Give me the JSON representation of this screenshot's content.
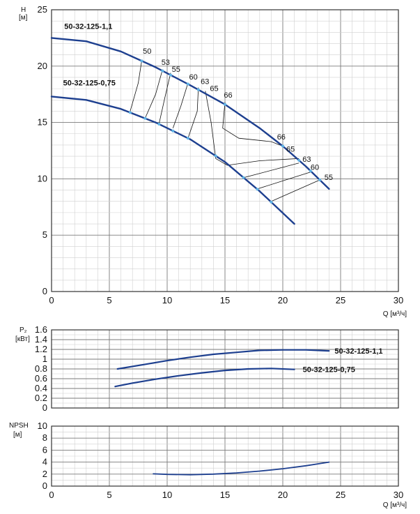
{
  "colors": {
    "curve": "#1d3f8f",
    "dot": "#5fb3e6",
    "iso": "#111111",
    "grid_major": "#7a7a7a",
    "grid_minor": "#d0d0d0"
  },
  "chart_data": [
    {
      "type": "line",
      "title": "",
      "ylabel": "H",
      "yunit": "[м]",
      "xlabel": "",
      "xlim": [
        0,
        30
      ],
      "ylim": [
        0,
        25
      ],
      "xticks": [
        "0",
        "5",
        "10",
        "15",
        "20",
        "25",
        "30"
      ],
      "yticks": [
        "0",
        "5",
        "10",
        "15",
        "20",
        "25"
      ],
      "series": [
        {
          "name": "50-32-125-1,1",
          "x": [
            0,
            3,
            6,
            9,
            12,
            15,
            18,
            20,
            22,
            24
          ],
          "y": [
            22.5,
            22.2,
            21.3,
            19.9,
            18.3,
            16.6,
            14.5,
            12.9,
            11.1,
            9.1
          ]
        },
        {
          "name": "50-32-125-0,75",
          "x": [
            0,
            3,
            6,
            9,
            12,
            15,
            18,
            21
          ],
          "y": [
            17.3,
            17.0,
            16.2,
            15.0,
            13.5,
            11.5,
            8.9,
            6.0
          ]
        }
      ],
      "markers": [
        {
          "series": 0,
          "x": [
            7.8,
            9.6,
            10.3,
            11.8,
            12.7,
            15.0,
            20.0,
            21.4,
            22.4,
            23.2
          ]
        },
        {
          "series": 1,
          "x": [
            6.8,
            8.1,
            9.3,
            10.5,
            11.8,
            14.2,
            16.6,
            17.8,
            19.0
          ]
        }
      ],
      "efficiency_curves": [
        {
          "label": "50",
          "points": [
            [
              7.8,
              20.5
            ],
            [
              7.5,
              18.5
            ],
            [
              6.8,
              16.0
            ]
          ]
        },
        {
          "label": "53",
          "points": [
            [
              9.6,
              19.7
            ],
            [
              9.0,
              17.5
            ],
            [
              8.1,
              15.4
            ]
          ]
        },
        {
          "label": "55",
          "points": [
            [
              10.3,
              19.4
            ],
            [
              9.8,
              17.2
            ],
            [
              9.3,
              14.9
            ]
          ]
        },
        {
          "label": "60",
          "points": [
            [
              11.8,
              18.5
            ],
            [
              11.2,
              16.5
            ],
            [
              10.5,
              14.5
            ]
          ]
        },
        {
          "label": "63",
          "points": [
            [
              12.7,
              18.1
            ],
            [
              12.6,
              16.0
            ],
            [
              11.8,
              13.6
            ]
          ]
        },
        {
          "label": "65",
          "points": [
            [
              13.3,
              17.8
            ],
            [
              13.8,
              15.0
            ],
            [
              14.2,
              11.8
            ]
          ]
        },
        {
          "label": "66",
          "points": [
            [
              15.0,
              16.8
            ],
            [
              14.8,
              14.5
            ],
            [
              16.2,
              13.6
            ],
            [
              19.0,
              13.3
            ],
            [
              20.0,
              12.9
            ]
          ]
        },
        {
          "label": "66",
          "points": [
            [
              14.2,
              11.8
            ],
            [
              15.2,
              11.2
            ],
            [
              18.0,
              11.6
            ],
            [
              21.4,
              11.8
            ]
          ]
        },
        {
          "label": "65",
          "points": [
            [
              16.6,
              10.1
            ],
            [
              21.4,
              11.4
            ]
          ]
        },
        {
          "label": "63",
          "points": [
            [
              17.8,
              9.1
            ],
            [
              22.4,
              10.6
            ]
          ]
        },
        {
          "label": "60",
          "points": [
            [
              19.0,
              8.0
            ],
            [
              23.2,
              9.9
            ]
          ]
        }
      ],
      "efficiency_labels": [
        {
          "text": "50",
          "x": 7.9,
          "y": 21.1
        },
        {
          "text": "53",
          "x": 9.5,
          "y": 20.1
        },
        {
          "text": "55",
          "x": 10.4,
          "y": 19.5
        },
        {
          "text": "60",
          "x": 11.9,
          "y": 18.8
        },
        {
          "text": "63",
          "x": 12.9,
          "y": 18.4
        },
        {
          "text": "65",
          "x": 13.7,
          "y": 17.8
        },
        {
          "text": "66",
          "x": 14.9,
          "y": 17.2
        },
        {
          "text": "66",
          "x": 19.5,
          "y": 13.5
        },
        {
          "text": "65",
          "x": 20.3,
          "y": 12.4
        },
        {
          "text": "63",
          "x": 21.7,
          "y": 11.5
        },
        {
          "text": "60",
          "x": 22.4,
          "y": 10.8
        },
        {
          "text": "55",
          "x": 23.6,
          "y": 9.9
        }
      ],
      "curve_labels": [
        {
          "text": "50-32-125-1,1",
          "x": 1.1,
          "y": 23.3
        },
        {
          "text": "50-32-125-0,75",
          "x": 1.0,
          "y": 18.3
        }
      ]
    },
    {
      "type": "line",
      "title": "",
      "ylabel": "P₂",
      "yunit": "[кВт]",
      "xlim": [
        0,
        30
      ],
      "ylim": [
        0,
        1.6
      ],
      "yticks": [
        "0",
        "0.2",
        "0.4",
        "0.6",
        "0.8",
        "1",
        "1.2",
        "1.4",
        "1.6"
      ],
      "series": [
        {
          "name": "50-32-125-1,1",
          "x": [
            5.7,
            8,
            10,
            12,
            14,
            16,
            18,
            20,
            22,
            24
          ],
          "y": [
            0.8,
            0.89,
            0.97,
            1.04,
            1.1,
            1.14,
            1.18,
            1.19,
            1.19,
            1.17
          ]
        },
        {
          "name": "50-32-125-0,75",
          "x": [
            5.5,
            7,
            9,
            11,
            13,
            15,
            17,
            19,
            21
          ],
          "y": [
            0.44,
            0.51,
            0.59,
            0.66,
            0.72,
            0.77,
            0.8,
            0.81,
            0.79
          ]
        }
      ],
      "series_labels": [
        "50-32-125-1,1",
        "50-32-125-0,75"
      ]
    },
    {
      "type": "line",
      "title": "",
      "ylabel": "NPSH",
      "yunit": "[м]",
      "xlabel": "Q",
      "xunit": "[м³/ч]",
      "xlim": [
        0,
        30
      ],
      "ylim": [
        0,
        10
      ],
      "xticks": [
        "0",
        "5",
        "10",
        "15",
        "20",
        "25",
        "30"
      ],
      "yticks": [
        "0",
        "2",
        "4",
        "6",
        "8",
        "10"
      ],
      "series": [
        {
          "name": "NPSH",
          "x": [
            8.8,
            10,
            12,
            14,
            16,
            18,
            20,
            22,
            24
          ],
          "y": [
            2.05,
            1.95,
            1.9,
            2.0,
            2.2,
            2.5,
            2.9,
            3.4,
            4.0
          ]
        }
      ]
    }
  ],
  "labels": {
    "h_axis": "H",
    "h_unit": "[м]",
    "p_axis": "P₂",
    "p_unit": "[кВт]",
    "npsh_axis": "NPSH",
    "npsh_unit": "[м]",
    "q_axis_top": "Q [м³/ч]",
    "q_axis_bottom": "Q [м³/ч]"
  }
}
